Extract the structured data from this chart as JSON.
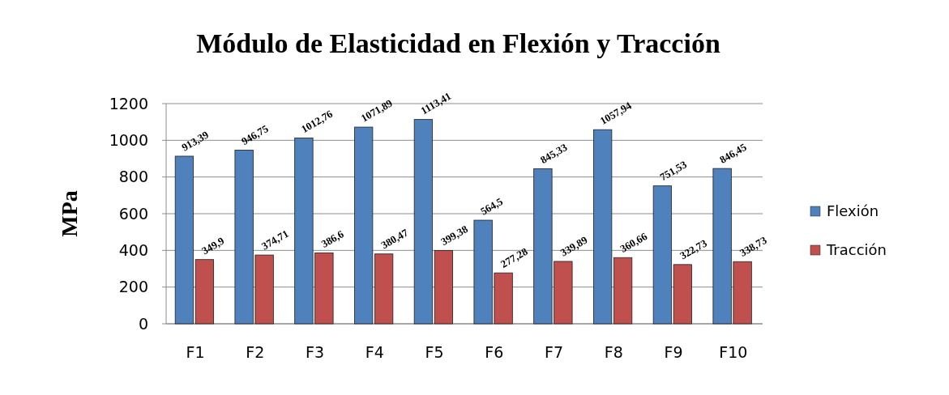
{
  "chart_data": {
    "type": "bar",
    "title": "Módulo de Elasticidad  en Flexión y Tracción",
    "ylabel": "MPa",
    "categories": [
      "F1",
      "F2",
      "F3",
      "F4",
      "F5",
      "F6",
      "F7",
      "F8",
      "F9",
      "F10"
    ],
    "series": [
      {
        "name": "Flexión",
        "color": "#4f81bd",
        "values": [
          913.39,
          946.75,
          1012.76,
          1071.89,
          1113.41,
          564.5,
          845.33,
          1057.94,
          751.53,
          846.45
        ],
        "value_labels": [
          "913,39",
          "946,75",
          "1012,76",
          "1071,89",
          "1113,41",
          "564,5",
          "845,33",
          "1057,94",
          "751,53",
          "846,45"
        ]
      },
      {
        "name": "Tracción",
        "color": "#c0504d",
        "values": [
          349.9,
          374.71,
          386.6,
          380.47,
          399.38,
          277.28,
          339.89,
          360.66,
          322.73,
          338.73
        ],
        "value_labels": [
          "349,9",
          "374,71",
          "386,6",
          "380,47",
          "399,38",
          "277,28",
          "339,89",
          "360,66",
          "322,73",
          "338,73"
        ]
      }
    ],
    "ylim": [
      0,
      1200
    ],
    "yticks": [
      0,
      200,
      400,
      600,
      800,
      1000,
      1200
    ],
    "grid": "y",
    "legend": "right"
  }
}
